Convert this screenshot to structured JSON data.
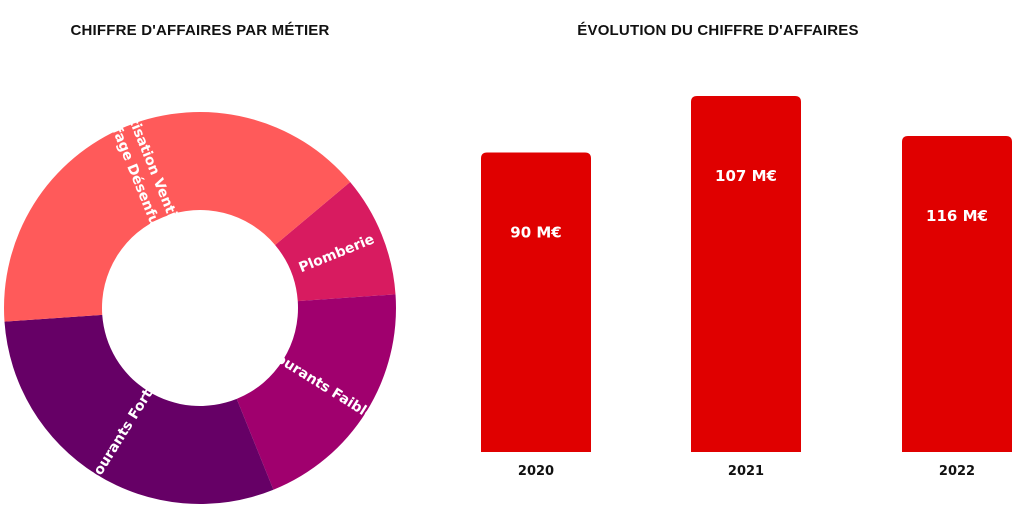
{
  "chart_data": [
    {
      "type": "pie",
      "variant": "donut",
      "title": "CHIFFRE D'AFFAIRES PAR MÉTIER",
      "slices": [
        {
          "label": "Plomberie",
          "value": 10,
          "color": "#d81b60"
        },
        {
          "label": "Courants Faibles",
          "value": 20,
          "color": "#a0006e"
        },
        {
          "label": "Courants Forts",
          "value": 30,
          "color": "#660066"
        },
        {
          "label": "Climatisation Ventilation Chauffage Désenfumage",
          "label_lines": [
            "Climatisation Ventilation",
            "Chauffage Désenfumage"
          ],
          "value": 40,
          "color": "#ff5a5a"
        }
      ]
    },
    {
      "type": "bar",
      "title": "ÉVOLUTION DU CHIFFRE D'AFFAIRES",
      "categories": [
        "2020",
        "2021",
        "2022"
      ],
      "values": [
        90,
        107,
        116
      ],
      "value_labels": [
        "90 M€",
        "107 M€",
        "116 M€"
      ],
      "unit": "M€",
      "color": "#e00000",
      "note": "2022 bar is drawn shorter than 2021 in the original"
    }
  ]
}
